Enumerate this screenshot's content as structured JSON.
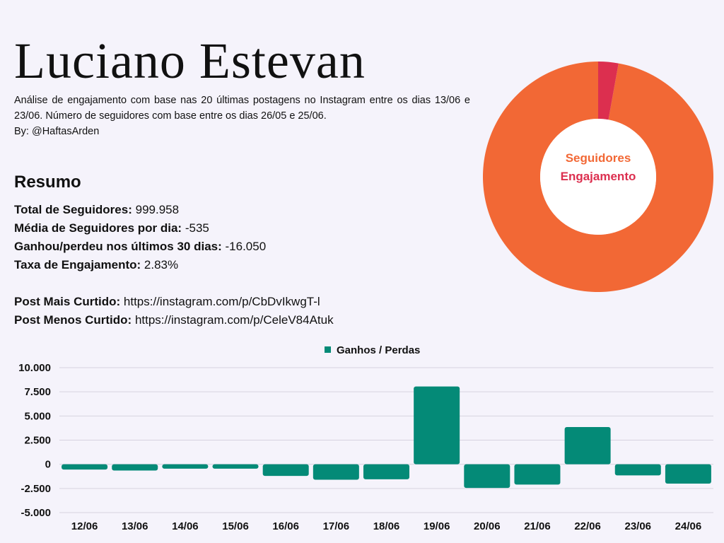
{
  "header": {
    "title": "Luciano Estevan",
    "description": "Análise de engajamento com base nas 20 últimas postagens no Instagram entre os dias 13/06 e 23/06. Número de seguidores com base entre os dias 26/05 e 25/06.",
    "byline": "By: @HaftasArden"
  },
  "summary": {
    "heading": "Resumo",
    "total_followers_label": "Total de Seguidores:",
    "total_followers_value": "999.958",
    "avg_per_day_label": "Média de Seguidores por dia:",
    "avg_per_day_value": "-535",
    "gain_loss_30_label": "Ganhou/perdeu nos últimos 30 dias:",
    "gain_loss_30_value": "-16.050",
    "engagement_rate_label": "Taxa de Engajamento:",
    "engagement_rate_value": "2.83%",
    "most_liked_label": "Post Mais Curtido:",
    "most_liked_value": "https://instagram.com/p/CbDvIkwgT-l",
    "least_liked_label": "Post Menos Curtido:",
    "least_liked_value": "https://instagram.com/p/CeleV84Atuk"
  },
  "chart_data": [
    {
      "type": "pie",
      "donut": true,
      "labels": [
        "Seguidores",
        "Engajamento"
      ],
      "values": [
        97.17,
        2.83
      ],
      "colors": [
        "#f26835",
        "#dc2f4f"
      ],
      "legend": "center"
    },
    {
      "type": "bar",
      "categories": [
        "12/06",
        "13/06",
        "14/06",
        "15/06",
        "16/06",
        "17/06",
        "18/06",
        "19/06",
        "20/06",
        "21/06",
        "22/06",
        "23/06",
        "24/06"
      ],
      "series": [
        {
          "name": "Ganhos / Perdas",
          "color": "#048a77",
          "values": [
            -550,
            -650,
            -450,
            -450,
            -1200,
            -1600,
            -1550,
            8050,
            -2450,
            -2100,
            3850,
            -1150,
            -2000
          ]
        }
      ],
      "ylim": [
        -5000,
        10000
      ],
      "yticks": [
        10000,
        7500,
        5000,
        2500,
        0,
        -2500,
        -5000
      ],
      "ytick_labels": [
        "10.000",
        "7.500",
        "5.000",
        "2.500",
        "0",
        "-2.500",
        "-5.000"
      ],
      "grid": true,
      "legend": "top-center"
    }
  ]
}
